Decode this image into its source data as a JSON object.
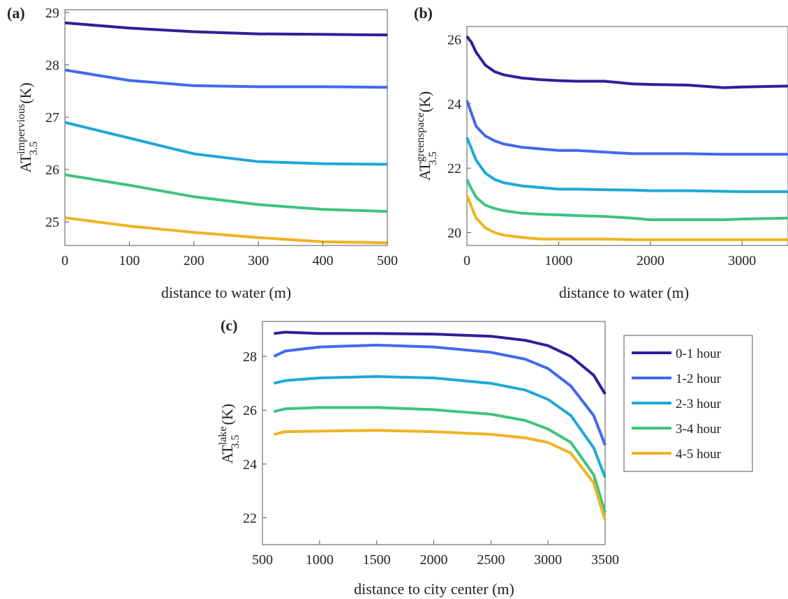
{
  "chart_data": [
    {
      "panel_label": "(a)",
      "type": "line",
      "xlabel": "distance to water (m)",
      "ylabel": {
        "base": "AT",
        "sup": "impervious",
        "sub": "3.5",
        "unit": "(K)"
      },
      "xlim": [
        0,
        500
      ],
      "ylim": [
        24.55,
        29.05
      ],
      "xticks": [
        0,
        100,
        200,
        300,
        400,
        500
      ],
      "yticks": [
        25,
        26,
        27,
        28,
        29
      ],
      "x": [
        0,
        100,
        200,
        300,
        400,
        500
      ],
      "series": [
        {
          "name": "0-1 hour",
          "values": [
            28.8,
            28.7,
            28.63,
            28.59,
            28.58,
            28.57
          ]
        },
        {
          "name": "1-2 hour",
          "values": [
            27.9,
            27.7,
            27.6,
            27.58,
            27.58,
            27.57
          ]
        },
        {
          "name": "2-3 hour",
          "values": [
            26.9,
            26.6,
            26.3,
            26.15,
            26.11,
            26.1
          ]
        },
        {
          "name": "3-4 hour",
          "values": [
            25.9,
            25.7,
            25.48,
            25.33,
            25.24,
            25.2
          ]
        },
        {
          "name": "4-5 hour",
          "values": [
            25.08,
            24.92,
            24.8,
            24.7,
            24.62,
            24.6
          ]
        }
      ]
    },
    {
      "panel_label": "(b)",
      "type": "line",
      "xlabel": "distance to water (m)",
      "ylabel": {
        "base": "AT",
        "sup": "greenspace",
        "sub": "3.5",
        "unit": "(K)"
      },
      "xlim": [
        0,
        3500
      ],
      "ylim": [
        19.6,
        26.4
      ],
      "xticks": [
        0,
        1000,
        2000,
        3000
      ],
      "yticks": [
        20,
        22,
        24,
        26
      ],
      "x": [
        0,
        50,
        100,
        200,
        300,
        400,
        600,
        800,
        1000,
        1200,
        1500,
        1800,
        2000,
        2400,
        2800,
        3000,
        3500
      ],
      "series": [
        {
          "name": "0-1 hour",
          "values": [
            26.1,
            25.9,
            25.6,
            25.2,
            25.0,
            24.9,
            24.8,
            24.75,
            24.72,
            24.7,
            24.7,
            24.62,
            24.6,
            24.58,
            24.5,
            24.52,
            24.55
          ]
        },
        {
          "name": "1-2 hour",
          "values": [
            24.1,
            23.7,
            23.3,
            23.0,
            22.85,
            22.75,
            22.65,
            22.6,
            22.55,
            22.55,
            22.5,
            22.45,
            22.45,
            22.45,
            22.43,
            22.43,
            22.43
          ]
        },
        {
          "name": "2-3 hour",
          "values": [
            22.95,
            22.6,
            22.25,
            21.85,
            21.65,
            21.55,
            21.45,
            21.4,
            21.35,
            21.35,
            21.33,
            21.32,
            21.3,
            21.3,
            21.28,
            21.27,
            21.27
          ]
        },
        {
          "name": "3-4 hour",
          "values": [
            21.65,
            21.35,
            21.1,
            20.85,
            20.75,
            20.68,
            20.6,
            20.57,
            20.55,
            20.53,
            20.5,
            20.45,
            20.4,
            20.4,
            20.4,
            20.42,
            20.45
          ]
        },
        {
          "name": "4-5 hour",
          "values": [
            21.15,
            20.8,
            20.45,
            20.15,
            20.0,
            19.92,
            19.85,
            19.8,
            19.8,
            19.8,
            19.8,
            19.78,
            19.78,
            19.78,
            19.78,
            19.78,
            19.78
          ]
        }
      ]
    },
    {
      "panel_label": "(c)",
      "type": "line",
      "xlabel": "distance to city center (m)",
      "ylabel": {
        "base": "AT",
        "sup": "lake",
        "sub": "3.5",
        "unit": "(K)"
      },
      "xlim": [
        500,
        3500
      ],
      "ylim": [
        21.0,
        29.3
      ],
      "xticks": [
        500,
        1000,
        1500,
        2000,
        2500,
        3000,
        3500
      ],
      "yticks": [
        22,
        24,
        26,
        28
      ],
      "x": [
        600,
        700,
        1000,
        1500,
        2000,
        2500,
        2800,
        3000,
        3200,
        3400,
        3500
      ],
      "series": [
        {
          "name": "0-1 hour",
          "values": [
            28.85,
            28.9,
            28.85,
            28.85,
            28.83,
            28.75,
            28.6,
            28.4,
            28.0,
            27.3,
            26.6
          ]
        },
        {
          "name": "1-2 hour",
          "values": [
            28.0,
            28.2,
            28.35,
            28.42,
            28.35,
            28.15,
            27.9,
            27.55,
            26.9,
            25.8,
            24.7
          ]
        },
        {
          "name": "2-3 hour",
          "values": [
            27.0,
            27.1,
            27.2,
            27.25,
            27.2,
            27.0,
            26.75,
            26.4,
            25.8,
            24.6,
            23.5
          ]
        },
        {
          "name": "3-4 hour",
          "values": [
            25.95,
            26.05,
            26.1,
            26.1,
            26.02,
            25.85,
            25.62,
            25.3,
            24.8,
            23.6,
            22.2
          ]
        },
        {
          "name": "4-5 hour",
          "values": [
            25.1,
            25.2,
            25.22,
            25.25,
            25.2,
            25.1,
            24.97,
            24.8,
            24.4,
            23.3,
            21.9
          ]
        }
      ]
    }
  ],
  "legend": {
    "placement": "right of panel (c)",
    "entries": [
      {
        "label": "0-1 hour",
        "color": "#2e1f9a"
      },
      {
        "label": "1-2 hour",
        "color": "#4169f0"
      },
      {
        "label": "2-3 hour",
        "color": "#1fa8d8"
      },
      {
        "label": "3-4 hour",
        "color": "#3dc47f"
      },
      {
        "label": "4-5 hour",
        "color": "#f0b323"
      }
    ]
  },
  "colors": [
    "#2e1f9a",
    "#4169f0",
    "#1fa8d8",
    "#3dc47f",
    "#f0b323"
  ]
}
